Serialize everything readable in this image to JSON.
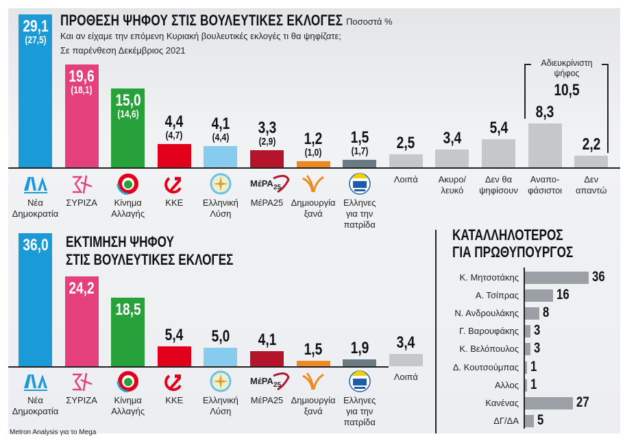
{
  "header": {
    "title": "ΠΡΟΘΕΣΗ ΨΗΦΟΥ ΣΤΙΣ ΒΟΥΛΕΥΤΙΚΕΣ ΕΚΛΟΓΕΣ",
    "unit": "Ποσοστά %",
    "question": "Και αν είχαμε την επόμενη Κυριακή βουλευτικές εκλογές τι θα ψηφίζατε;",
    "note": "Σε παρένθεση Δεκέμβριος 2021"
  },
  "undecided_group": {
    "label": "Αδιευκρίνιστη ψήφος",
    "value": "10,5"
  },
  "estimate": {
    "title_line1": "ΕΚΤΙΜΗΣΗ ΨΗΦΟΥ",
    "title_line2": "ΣΤΙΣ ΒΟΥΛΕΥΤΙΚΕΣ ΕΚΛΟΓΕΣ"
  },
  "pm": {
    "title_line1": "ΚΑΤΑΛΛΗΛΟΤΕΡΟΣ",
    "title_line2": "ΓΙΑ ΠΡΩΘΥΠΟΥΡΓΟΣ"
  },
  "source": "Metron Analysis για το Mega",
  "colors": {
    "nd": "#1a9ad6",
    "syriza": "#e4407c",
    "kinal": "#27a23a",
    "kke": "#e2001a",
    "elliniki": "#87ccee",
    "mera25": "#b5152b",
    "dimiourgia": "#ef8a22",
    "ellines": "#6c7a83",
    "other": "#c6c7c9",
    "pm_bar": "#9aa0a5"
  },
  "chart_data": [
    {
      "type": "bar",
      "title": "ΠΡΟΘΕΣΗ ΨΗΦΟΥ ΣΤΙΣ ΒΟΥΛΕΥΤΙΚΕΣ ΕΚΛΟΓΕΣ",
      "categories": [
        "Νέα Δημοκρατία",
        "ΣΥΡΙΖΑ",
        "Κίνημα Αλλαγής",
        "ΚΚΕ",
        "Ελληνική Λύση",
        "ΜέΡΑ25",
        "Δημιουργία ξανά",
        "Ελληνες για την πατρίδα",
        "Λοιπά",
        "Ακυρο/ λευκό",
        "Δεν θα ψηφίσουν",
        "Αναπο- φάσιστοι",
        "Δεν απαντώ"
      ],
      "series": [
        {
          "name": "",
          "values": [
            29.1,
            19.6,
            15.0,
            4.4,
            4.1,
            3.3,
            1.2,
            1.5,
            2.5,
            3.4,
            5.4,
            8.3,
            2.2
          ],
          "labels": [
            "29,1",
            "19,6",
            "15,0",
            "4,4",
            "4,1",
            "3,3",
            "1,2",
            "1,5",
            "2,5",
            "3,4",
            "5,4",
            "8,3",
            "2,2"
          ]
        },
        {
          "name": "Δεκέμβριος 2021",
          "values": [
            27.5,
            18.1,
            14.6,
            4.7,
            4.4,
            2.9,
            1.0,
            1.7,
            null,
            null,
            null,
            null,
            null
          ],
          "labels": [
            "(27,5)",
            "(18,1)",
            "(14,6)",
            "(4,7)",
            "(4,4)",
            "(2,9)",
            "(1,0)",
            "(1,7)",
            null,
            null,
            null,
            null,
            null
          ]
        }
      ],
      "color_keys": [
        "nd",
        "syriza",
        "kinal",
        "kke",
        "elliniki",
        "mera25",
        "dimiourgia",
        "ellines",
        "other",
        "other",
        "other",
        "other",
        "other"
      ],
      "logos": [
        "nd-logo",
        "syriza-logo",
        "kinal-logo",
        "kke-logo",
        "elliniki-lysi-logo",
        "mera25-logo",
        "dimiourgia-logo",
        "ellines-logo",
        null,
        null,
        null,
        null,
        null
      ]
    },
    {
      "type": "bar",
      "title": "ΕΚΤΙΜΗΣΗ ΨΗΦΟΥ ΣΤΙΣ ΒΟΥΛΕΥΤΙΚΕΣ ΕΚΛΟΓΕΣ",
      "categories": [
        "Νέα Δημοκρατία",
        "ΣΥΡΙΖΑ",
        "Κίνημα Αλλαγής",
        "ΚΚΕ",
        "Ελληνική Λύση",
        "ΜέΡΑ25",
        "Δημιουργία ξανά",
        "Ελληνες για την πατρίδα",
        "Λοιπά"
      ],
      "values": [
        36.0,
        24.2,
        18.5,
        5.4,
        5.0,
        4.1,
        1.5,
        1.9,
        3.4
      ],
      "labels": [
        "36,0",
        "24,2",
        "18,5",
        "5,4",
        "5,0",
        "4,1",
        "1,5",
        "1,9",
        "3,4"
      ],
      "color_keys": [
        "nd",
        "syriza",
        "kinal",
        "kke",
        "elliniki",
        "mera25",
        "dimiourgia",
        "ellines",
        "other"
      ],
      "logos": [
        "nd-logo",
        "syriza-logo",
        "kinal-logo",
        "kke-logo",
        "elliniki-lysi-logo",
        "mera25-logo",
        "dimiourgia-logo",
        "ellines-logo",
        null
      ]
    },
    {
      "type": "bar",
      "orientation": "horizontal",
      "title": "ΚΑΤΑΛΛΗΛΟΤΕΡΟΣ ΓΙΑ ΠΡΩΘΥΠΟΥΡΓΟΣ",
      "categories": [
        "Κ. Μητσοτάκης",
        "Α. Τσίπρας",
        "Ν. Ανδρουλάκης",
        "Γ. Βαρουφάκης",
        "Κ. Βελόπουλος",
        "Δ. Κουτσούμπας",
        "Αλλος",
        "Κανένας",
        "ΔΓ/ΔΑ"
      ],
      "values": [
        36,
        16,
        8,
        3,
        3,
        1,
        1,
        27,
        5
      ]
    }
  ]
}
